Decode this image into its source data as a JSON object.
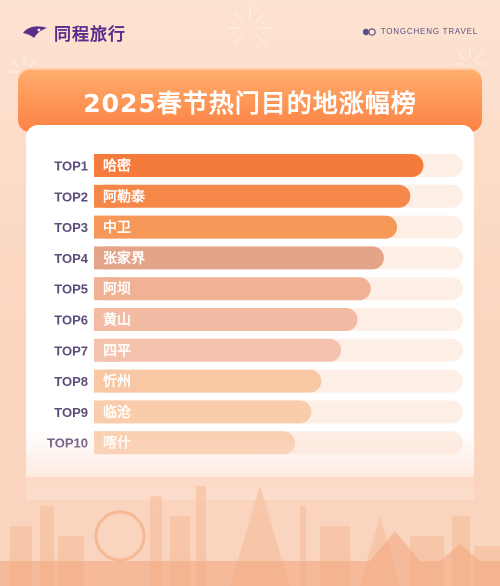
{
  "header": {
    "brand_cn": "同程旅行",
    "brand_en": "TONGCHENG TRAVEL",
    "logo_icon": "tongcheng-bird-logo-icon",
    "brand_color": "#5a2d8a"
  },
  "chart_data": {
    "type": "bar",
    "orientation": "horizontal",
    "title": "2025春节热门目的地涨幅榜",
    "categories": [
      "TOP1",
      "TOP2",
      "TOP3",
      "TOP4",
      "TOP5",
      "TOP6",
      "TOP7",
      "TOP8",
      "TOP9",
      "TOP10"
    ],
    "labels": [
      "哈密",
      "阿勒泰",
      "中卫",
      "张家界",
      "阿坝",
      "黄山",
      "四平",
      "忻州",
      "临沧",
      "喀什"
    ],
    "values": [
      100,
      96,
      92,
      88,
      84,
      80,
      75,
      69,
      66,
      61
    ],
    "xlim": [
      0,
      112
    ],
    "grid": false,
    "legend": "none",
    "colors": [
      "#f47b3b",
      "#f58848",
      "#f69858",
      "#e4a48a",
      "#f0b194",
      "#f3bba3",
      "#f5c2ad",
      "#f8c8a5",
      "#f9cdab",
      "#facfb0"
    ],
    "track_color": "#fdeee6",
    "title_color": "#ffffff",
    "accent": "#fb8244"
  }
}
